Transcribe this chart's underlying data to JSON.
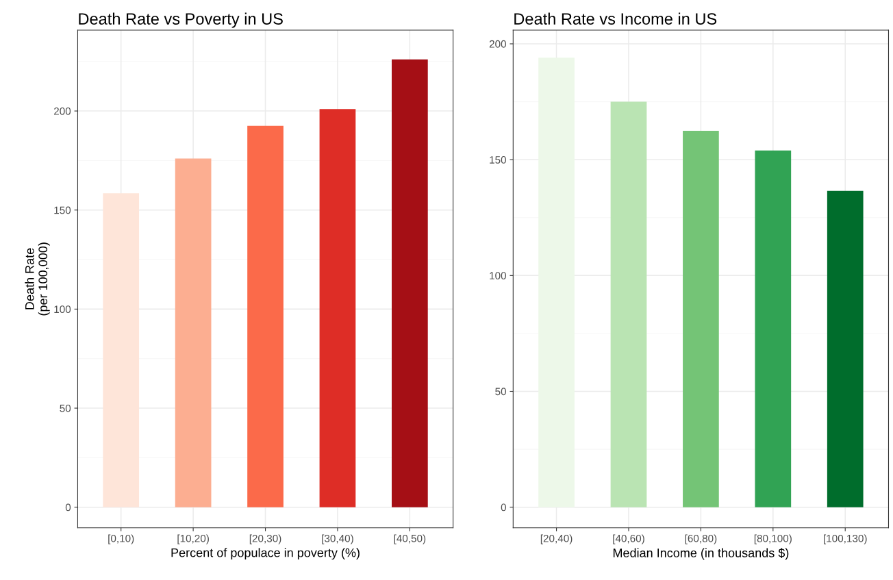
{
  "chart_data": [
    {
      "type": "bar",
      "title": "Death Rate vs Poverty in US",
      "xlabel": "Percent of populace in poverty (%)",
      "ylabel": "Death Rate\n(per 100,000)",
      "categories": [
        "[0,10)",
        "[10,20)",
        "[20,30)",
        "[30,40)",
        "[40,50)"
      ],
      "values": [
        158.5,
        176,
        192.5,
        201,
        226
      ],
      "colors": [
        "#fee5d9",
        "#fcae91",
        "#fb6a4a",
        "#de2d26",
        "#a50f15"
      ],
      "ylim": [
        -10.4,
        240.8
      ],
      "yticks": [
        0,
        50,
        100,
        150,
        200
      ],
      "grid": true
    },
    {
      "type": "bar",
      "title": "Death Rate vs Income in US",
      "xlabel": "Median Income (in thousands $)",
      "categories": [
        "[20,40)",
        "[40,60)",
        "[60,80)",
        "[80,100)",
        "[100,130)"
      ],
      "values": [
        194,
        175,
        162.5,
        154,
        136.5
      ],
      "colors": [
        "#edf8e9",
        "#bae4b3",
        "#74c476",
        "#31a354",
        "#006d2c"
      ],
      "ylim": [
        -8.9,
        205.9
      ],
      "yticks": [
        0,
        50,
        100,
        150,
        200
      ],
      "grid": true
    }
  ]
}
